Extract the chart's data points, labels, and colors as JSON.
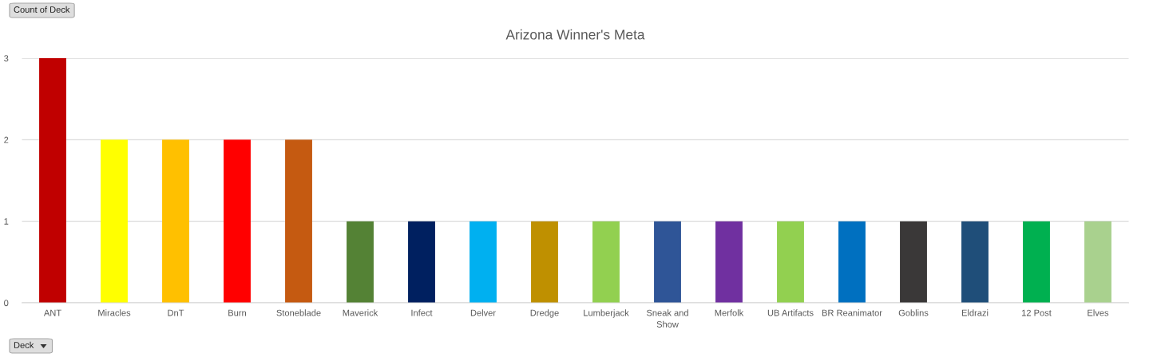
{
  "chart_data": {
    "type": "bar",
    "title": "Arizona Winner's Meta",
    "ylabel": "Count of Deck",
    "xlabel": "Deck",
    "categories": [
      "ANT",
      "Miracles",
      "DnT",
      "Burn",
      "Stoneblade",
      "Maverick",
      "Infect",
      "Delver",
      "Dredge",
      "Lumberjack",
      "Sneak and\nShow",
      "Merfolk",
      "UB Artifacts",
      "BR Reanimator",
      "Goblins",
      "Eldrazi",
      "12 Post",
      "Elves"
    ],
    "values": [
      3,
      2,
      2,
      2,
      2,
      1,
      1,
      1,
      1,
      1,
      1,
      1,
      1,
      1,
      1,
      1,
      1,
      1
    ],
    "colors": [
      "#c00000",
      "#ffff00",
      "#ffc000",
      "#ff0000",
      "#c55a11",
      "#548235",
      "#002060",
      "#00b0f0",
      "#bf9000",
      "#92d050",
      "#2f5597",
      "#7030a0",
      "#92d050",
      "#0070c0",
      "#3a3838",
      "#1f4e79",
      "#00b050",
      "#a9d18e"
    ],
    "ylim": [
      0,
      3
    ],
    "yticks": [
      0,
      1,
      2,
      3
    ],
    "grid": "y"
  }
}
